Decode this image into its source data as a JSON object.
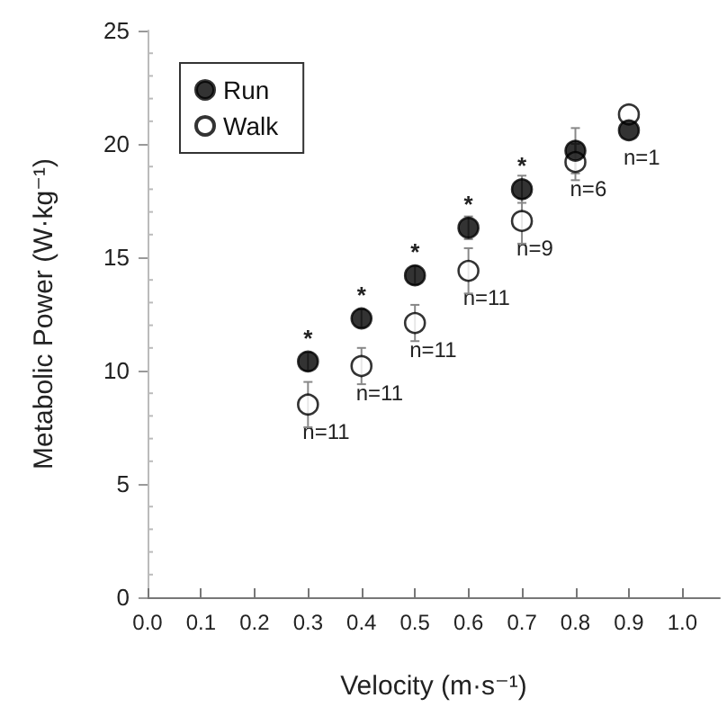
{
  "chart_data": {
    "type": "scatter",
    "xlabel": "Velocity (m·s⁻¹)",
    "ylabel": "Metabolic Power (W·kg⁻¹)",
    "x": [
      0.3,
      0.4,
      0.5,
      0.6,
      0.7,
      0.8,
      0.9
    ],
    "series": [
      {
        "name": "Run",
        "color": "#000000",
        "values": [
          10.4,
          12.3,
          14.2,
          16.3,
          18.0,
          19.7,
          20.6
        ],
        "errors": [
          0.4,
          0.4,
          0.4,
          0.5,
          0.6,
          1.0,
          null
        ]
      },
      {
        "name": "Walk",
        "color": "#ffffff",
        "values": [
          8.5,
          10.2,
          12.1,
          14.4,
          16.6,
          19.2,
          21.3
        ],
        "errors": [
          1.0,
          0.8,
          0.8,
          1.0,
          1.0,
          0.8,
          null
        ]
      }
    ],
    "xlim": [
      0,
      1.07
    ],
    "xticks": [
      {
        "value": 0,
        "label": "0.0"
      },
      0.1,
      0.2,
      0.3,
      0.4,
      0.5,
      0.6,
      0.7,
      0.8,
      0.9,
      {
        "value": 1,
        "label": "1.0"
      }
    ],
    "ylim": [
      0,
      25
    ],
    "yticks": [
      0,
      5,
      10,
      15,
      20,
      25
    ],
    "marker": "circle",
    "grid": false,
    "legend": "top left",
    "annotations": [
      {
        "text": "*",
        "x": 0.3,
        "y": 10.4
      },
      {
        "text": "*",
        "x": 0.4,
        "y": 12.3
      },
      {
        "text": "*",
        "x": 0.5,
        "y": 14.2
      },
      {
        "text": "*",
        "x": 0.6,
        "y": 16.3
      },
      {
        "text": "*",
        "x": 0.7,
        "y": 18.0
      },
      {
        "text": "n=11",
        "x": 0.3,
        "y": 8.5
      },
      {
        "text": "n=11",
        "x": 0.4,
        "y": 10.2
      },
      {
        "text": "n=11",
        "x": 0.5,
        "y": 12.1
      },
      {
        "text": "n=11",
        "x": 0.6,
        "y": 14.4
      },
      {
        "text": "n=9",
        "x": 0.7,
        "y": 16.6
      },
      {
        "text": "n=6",
        "x": 0.8,
        "y": 19.2
      },
      {
        "text": "n=1",
        "x": 0.9,
        "y": 20.6
      }
    ]
  }
}
